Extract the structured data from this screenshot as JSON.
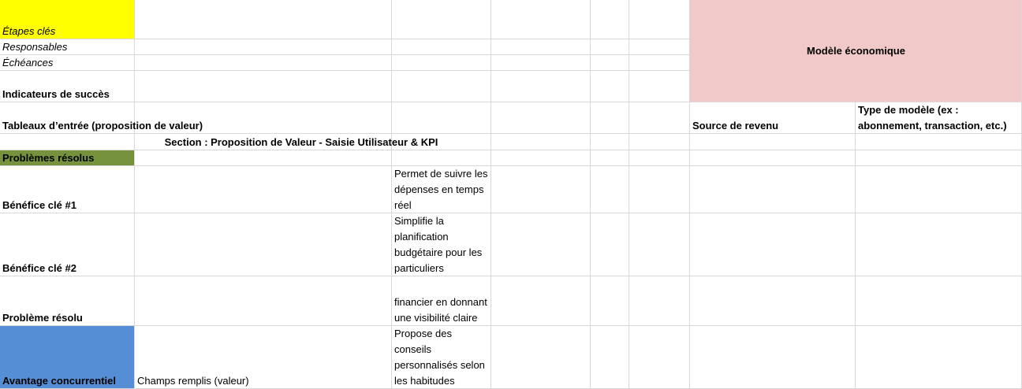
{
  "labels": {
    "etapes": "Étapes clés",
    "responsables": "Responsables",
    "echeances": "Échéances",
    "indicateurs": "Indicateurs de succès",
    "tableaux": "Tableaux d’entrée (proposition de valeur)",
    "section": "Section : Proposition de Valeur - Saisie Utilisateur & KPI",
    "problemes": "Problèmes résolus",
    "benefice1": "Bénéfice clé #1",
    "benefice2": "Bénéfice clé #2",
    "probleme": "Problème résolu",
    "avantage": "Avantage concurrentiel"
  },
  "cells": {
    "modele": "Modèle économique",
    "source": "Source de revenu",
    "type_modele": "Type de modèle (ex : abonnement, transaction, etc.)",
    "benefice1_text": "Permet de suivre les dépenses en temps réel",
    "benefice2_text": "Simplifie la planification budgétaire pour les particuliers",
    "probleme_text": "financier en donnant une visibilité claire",
    "avantage_text": "Propose des conseils personnalisés selon les habitudes",
    "avantage_value": "Champs remplis (valeur)"
  }
}
